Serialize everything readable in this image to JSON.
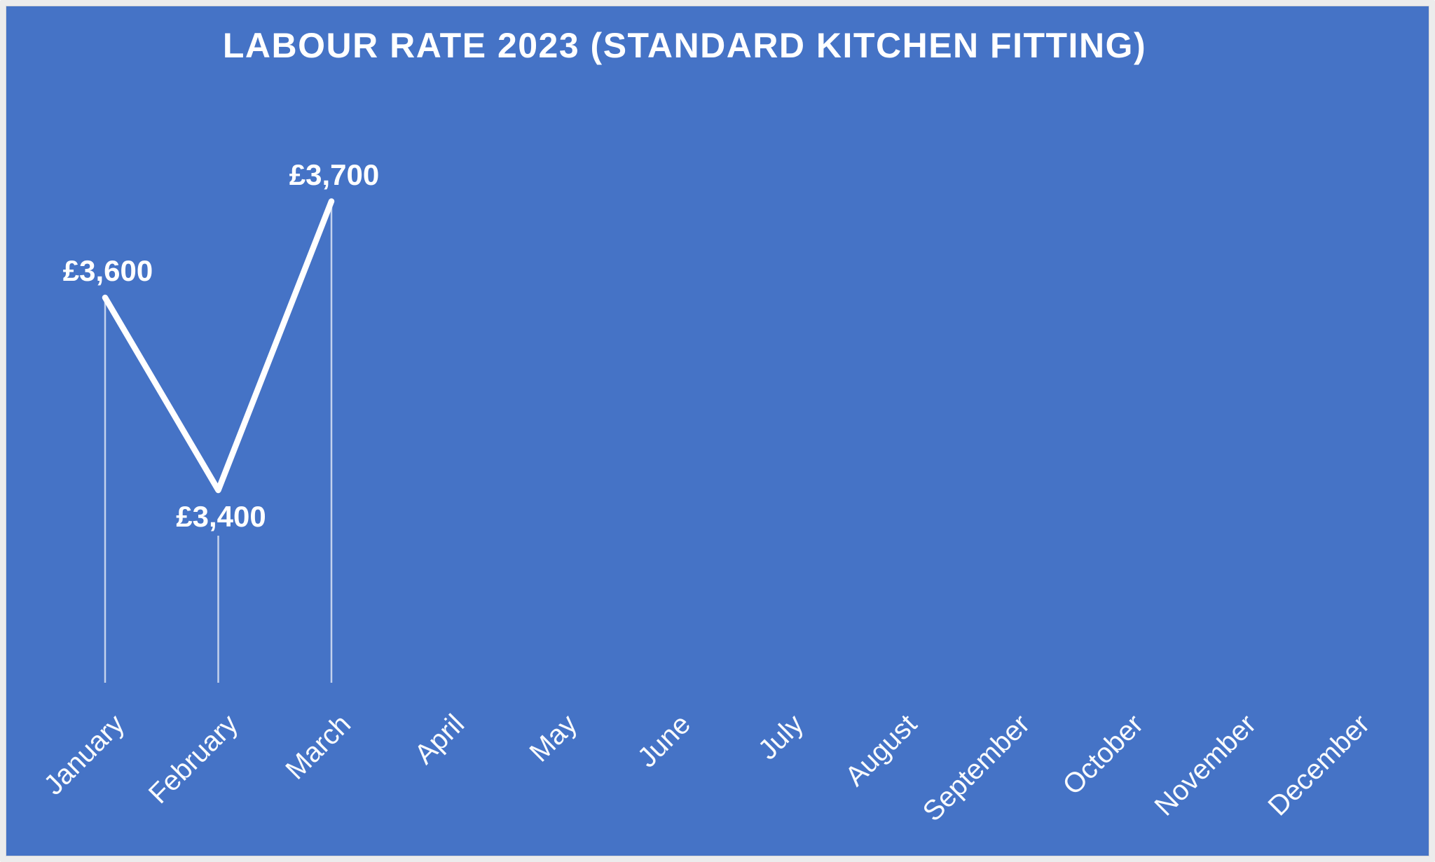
{
  "chart_data": {
    "type": "line",
    "title": "LABOUR RATE 2023 (STANDARD KITCHEN FITTING)",
    "categories": [
      "January",
      "February",
      "March",
      "April",
      "May",
      "June",
      "July",
      "August",
      "September",
      "October",
      "November",
      "December"
    ],
    "values": [
      3600,
      3400,
      3700,
      null,
      null,
      null,
      null,
      null,
      null,
      null,
      null,
      null
    ],
    "data_labels": [
      "£3,600",
      "£3,400",
      "£3,700",
      null,
      null,
      null,
      null,
      null,
      null,
      null,
      null,
      null
    ],
    "currency_prefix": "£",
    "xlabel": "",
    "ylabel": "",
    "legend": "none",
    "gridlines": false,
    "axes": {
      "y_axis_visible": false,
      "x_axis_visible": true,
      "x_label_rotation_deg": -45,
      "drop_lines": true
    },
    "colors": {
      "plot_background": "#4573C6",
      "series_line": "#FFFFFF",
      "text": "#FFFFFF",
      "drop_line": "rgba(255,255,255,0.68)",
      "frame_border": "#ECECEC"
    }
  }
}
